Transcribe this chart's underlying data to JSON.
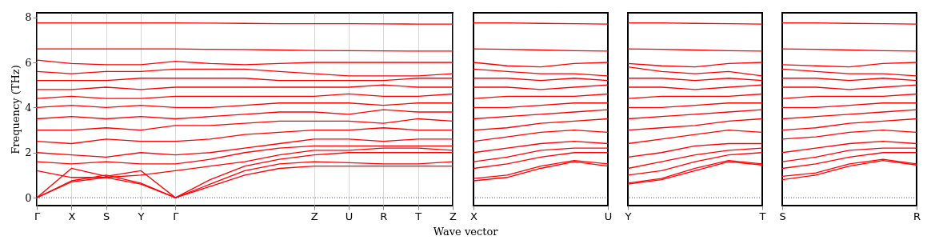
{
  "chart_data": [
    {
      "type": "line",
      "ylabel": "Frequency (THz)",
      "xlabel": "Wave vector",
      "categories": [
        "Γ",
        "X",
        "S",
        "Y",
        "Γ",
        null,
        null,
        null,
        "Z",
        "U",
        "R",
        "T",
        "Z"
      ],
      "ylim": [
        -0.35,
        8.2
      ],
      "yticks": [
        0,
        2,
        4,
        6,
        8
      ],
      "grid": "x",
      "ref_lines": [
        {
          "axis": "y",
          "value": 0,
          "color": "#0000ff",
          "line_style": "dotted"
        }
      ],
      "series": [
        {
          "color": "#ff0000",
          "values": [
            7.75,
            7.75,
            7.75,
            7.75,
            7.75,
            7.74,
            7.73,
            7.72,
            7.72,
            7.72,
            7.71,
            7.7,
            7.7
          ]
        },
        {
          "color": "#ff0000",
          "values": [
            6.6,
            6.6,
            6.6,
            6.6,
            6.6,
            6.58,
            6.57,
            6.55,
            6.53,
            6.52,
            6.51,
            6.5,
            6.5
          ]
        },
        {
          "color": "#ff0000",
          "values": [
            6.1,
            5.95,
            5.9,
            5.9,
            6.05,
            5.95,
            5.9,
            5.95,
            6.0,
            6.0,
            6.0,
            6.0,
            6.0
          ]
        },
        {
          "color": "#ff0000",
          "values": [
            0,
            0.7,
            0.9,
            0.6,
            0,
            0.5,
            1.0,
            1.3,
            1.4,
            1.4,
            1.4,
            1.4,
            1.4
          ]
        },
        {
          "color": "#ff0000",
          "values": [
            0,
            0.75,
            1.0,
            0.65,
            0,
            0.6,
            1.2,
            1.5,
            1.6,
            1.55,
            1.5,
            1.5,
            1.6
          ]
        },
        {
          "color": "#ff0000",
          "values": [
            0,
            1.3,
            0.95,
            1.2,
            0,
            0.8,
            1.4,
            1.7,
            1.9,
            2.0,
            2.0,
            2.0,
            2.0
          ]
        },
        {
          "color": "#ff0000",
          "values": [
            1.2,
            0.9,
            0.9,
            1.0,
            1.2,
            1.4,
            1.6,
            1.9,
            2.1,
            2.1,
            2.2,
            2.2,
            2.1
          ]
        },
        {
          "color": "#ff0000",
          "values": [
            1.6,
            1.5,
            1.6,
            1.5,
            1.5,
            1.7,
            2.0,
            2.2,
            2.3,
            2.3,
            2.3,
            2.3,
            2.3
          ]
        },
        {
          "color": "#ff0000",
          "values": [
            2.0,
            1.9,
            1.8,
            2.0,
            1.9,
            2.0,
            2.2,
            2.4,
            2.6,
            2.6,
            2.5,
            2.6,
            2.6
          ]
        },
        {
          "color": "#ff0000",
          "values": [
            2.5,
            2.4,
            2.6,
            2.5,
            2.5,
            2.6,
            2.8,
            2.9,
            3.0,
            3.0,
            3.1,
            3.0,
            3.0
          ]
        },
        {
          "color": "#ff0000",
          "values": [
            3.0,
            3.0,
            3.1,
            3.0,
            3.2,
            3.2,
            3.3,
            3.4,
            3.4,
            3.4,
            3.3,
            3.5,
            3.4
          ]
        },
        {
          "color": "#ff0000",
          "values": [
            3.5,
            3.6,
            3.5,
            3.6,
            3.5,
            3.6,
            3.7,
            3.8,
            3.8,
            3.7,
            3.9,
            3.8,
            3.8
          ]
        },
        {
          "color": "#ff0000",
          "values": [
            4.0,
            4.1,
            4.0,
            4.1,
            4.0,
            4.0,
            4.1,
            4.2,
            4.2,
            4.2,
            4.1,
            4.2,
            4.2
          ]
        },
        {
          "color": "#ff0000",
          "values": [
            4.4,
            4.5,
            4.4,
            4.4,
            4.5,
            4.5,
            4.5,
            4.5,
            4.5,
            4.6,
            4.5,
            4.5,
            4.6
          ]
        },
        {
          "color": "#ff0000",
          "values": [
            4.8,
            4.8,
            4.9,
            4.8,
            4.9,
            4.9,
            4.9,
            4.9,
            4.9,
            4.9,
            5.0,
            4.9,
            4.9
          ]
        },
        {
          "color": "#ff0000",
          "values": [
            5.2,
            5.2,
            5.2,
            5.3,
            5.3,
            5.3,
            5.3,
            5.2,
            5.2,
            5.2,
            5.2,
            5.3,
            5.3
          ]
        },
        {
          "color": "#ff0000",
          "values": [
            5.6,
            5.5,
            5.6,
            5.6,
            5.7,
            5.7,
            5.7,
            5.6,
            5.5,
            5.4,
            5.4,
            5.4,
            5.5
          ]
        }
      ]
    },
    {
      "type": "line",
      "categories": [
        "X",
        null,
        null,
        null,
        "U"
      ],
      "ylim": [
        -0.35,
        8.2
      ],
      "tick_labels": "x",
      "ref_lines": [
        {
          "axis": "y",
          "value": 0,
          "color": "#0000ff",
          "line_style": "dotted"
        }
      ],
      "series": [
        {
          "color": "#ff0000",
          "values": [
            7.75,
            7.75,
            7.73,
            7.72,
            7.7
          ]
        },
        {
          "color": "#ff0000",
          "values": [
            6.6,
            6.58,
            6.55,
            6.52,
            6.5
          ]
        },
        {
          "color": "#ff0000",
          "values": [
            6.0,
            5.85,
            5.8,
            5.95,
            6.0
          ]
        },
        {
          "color": "#ff0000",
          "values": [
            0.75,
            0.9,
            1.3,
            1.6,
            1.4
          ]
        },
        {
          "color": "#ff0000",
          "values": [
            0.85,
            1.0,
            1.4,
            1.65,
            1.5
          ]
        },
        {
          "color": "#ff0000",
          "values": [
            1.3,
            1.5,
            1.8,
            2.0,
            2.0
          ]
        },
        {
          "color": "#ff0000",
          "values": [
            1.6,
            1.8,
            2.1,
            2.2,
            2.2
          ]
        },
        {
          "color": "#ff0000",
          "values": [
            2.0,
            2.2,
            2.4,
            2.5,
            2.4
          ]
        },
        {
          "color": "#ff0000",
          "values": [
            2.5,
            2.7,
            2.9,
            3.0,
            2.9
          ]
        },
        {
          "color": "#ff0000",
          "values": [
            3.0,
            3.1,
            3.3,
            3.4,
            3.5
          ]
        },
        {
          "color": "#ff0000",
          "values": [
            3.5,
            3.6,
            3.7,
            3.8,
            3.9
          ]
        },
        {
          "color": "#ff0000",
          "values": [
            4.0,
            4.0,
            4.1,
            4.2,
            4.2
          ]
        },
        {
          "color": "#ff0000",
          "values": [
            4.4,
            4.5,
            4.5,
            4.5,
            4.6
          ]
        },
        {
          "color": "#ff0000",
          "values": [
            4.9,
            4.9,
            4.8,
            4.9,
            5.0
          ]
        },
        {
          "color": "#ff0000",
          "values": [
            5.3,
            5.3,
            5.2,
            5.3,
            5.2
          ]
        },
        {
          "color": "#ff0000",
          "values": [
            5.7,
            5.6,
            5.5,
            5.5,
            5.4
          ]
        }
      ]
    },
    {
      "type": "line",
      "categories": [
        "Y",
        null,
        null,
        null,
        "T"
      ],
      "ylim": [
        -0.35,
        8.2
      ],
      "tick_labels": "x",
      "ref_lines": [
        {
          "axis": "y",
          "value": 0,
          "color": "#0000ff",
          "line_style": "dotted"
        }
      ],
      "series": [
        {
          "color": "#ff0000",
          "values": [
            7.75,
            7.75,
            7.73,
            7.72,
            7.7
          ]
        },
        {
          "color": "#ff0000",
          "values": [
            6.6,
            6.58,
            6.55,
            6.52,
            6.5
          ]
        },
        {
          "color": "#ff0000",
          "values": [
            5.95,
            5.85,
            5.8,
            5.95,
            6.0
          ]
        },
        {
          "color": "#ff0000",
          "values": [
            0.6,
            0.8,
            1.2,
            1.6,
            1.45
          ]
        },
        {
          "color": "#ff0000",
          "values": [
            0.65,
            0.85,
            1.3,
            1.65,
            1.5
          ]
        },
        {
          "color": "#ff0000",
          "values": [
            1.0,
            1.2,
            1.6,
            1.9,
            2.0
          ]
        },
        {
          "color": "#ff0000",
          "values": [
            1.3,
            1.6,
            1.9,
            2.1,
            2.2
          ]
        },
        {
          "color": "#ff0000",
          "values": [
            1.8,
            2.0,
            2.3,
            2.4,
            2.4
          ]
        },
        {
          "color": "#ff0000",
          "values": [
            2.4,
            2.6,
            2.8,
            3.0,
            2.9
          ]
        },
        {
          "color": "#ff0000",
          "values": [
            3.0,
            3.1,
            3.2,
            3.4,
            3.5
          ]
        },
        {
          "color": "#ff0000",
          "values": [
            3.5,
            3.6,
            3.7,
            3.8,
            3.9
          ]
        },
        {
          "color": "#ff0000",
          "values": [
            4.0,
            4.0,
            4.1,
            4.2,
            4.2
          ]
        },
        {
          "color": "#ff0000",
          "values": [
            4.4,
            4.5,
            4.5,
            4.5,
            4.6
          ]
        },
        {
          "color": "#ff0000",
          "values": [
            4.9,
            4.9,
            4.8,
            4.9,
            5.0
          ]
        },
        {
          "color": "#ff0000",
          "values": [
            5.3,
            5.3,
            5.2,
            5.3,
            5.2
          ]
        },
        {
          "color": "#ff0000",
          "values": [
            5.8,
            5.6,
            5.5,
            5.6,
            5.4
          ]
        }
      ]
    },
    {
      "type": "line",
      "categories": [
        "S",
        null,
        null,
        null,
        "R"
      ],
      "ylim": [
        -0.35,
        8.2
      ],
      "tick_labels": "x",
      "ref_lines": [
        {
          "axis": "y",
          "value": 0,
          "color": "#0000ff",
          "line_style": "dotted"
        }
      ],
      "series": [
        {
          "color": "#ff0000",
          "values": [
            7.75,
            7.75,
            7.73,
            7.72,
            7.7
          ]
        },
        {
          "color": "#ff0000",
          "values": [
            6.6,
            6.58,
            6.55,
            6.52,
            6.5
          ]
        },
        {
          "color": "#ff0000",
          "values": [
            5.9,
            5.85,
            5.8,
            5.95,
            6.0
          ]
        },
        {
          "color": "#ff0000",
          "values": [
            0.8,
            1.0,
            1.4,
            1.65,
            1.45
          ]
        },
        {
          "color": "#ff0000",
          "values": [
            0.95,
            1.1,
            1.5,
            1.7,
            1.5
          ]
        },
        {
          "color": "#ff0000",
          "values": [
            1.3,
            1.5,
            1.8,
            2.0,
            2.0
          ]
        },
        {
          "color": "#ff0000",
          "values": [
            1.6,
            1.8,
            2.1,
            2.2,
            2.2
          ]
        },
        {
          "color": "#ff0000",
          "values": [
            2.0,
            2.2,
            2.4,
            2.5,
            2.4
          ]
        },
        {
          "color": "#ff0000",
          "values": [
            2.6,
            2.7,
            2.9,
            3.0,
            2.9
          ]
        },
        {
          "color": "#ff0000",
          "values": [
            3.0,
            3.1,
            3.3,
            3.4,
            3.5
          ]
        },
        {
          "color": "#ff0000",
          "values": [
            3.5,
            3.6,
            3.7,
            3.8,
            3.9
          ]
        },
        {
          "color": "#ff0000",
          "values": [
            4.0,
            4.0,
            4.1,
            4.2,
            4.2
          ]
        },
        {
          "color": "#ff0000",
          "values": [
            4.4,
            4.5,
            4.5,
            4.5,
            4.6
          ]
        },
        {
          "color": "#ff0000",
          "values": [
            4.9,
            4.9,
            4.8,
            4.9,
            5.0
          ]
        },
        {
          "color": "#ff0000",
          "values": [
            5.3,
            5.3,
            5.2,
            5.3,
            5.2
          ]
        },
        {
          "color": "#ff0000",
          "values": [
            5.7,
            5.6,
            5.5,
            5.5,
            5.4
          ]
        }
      ]
    }
  ]
}
